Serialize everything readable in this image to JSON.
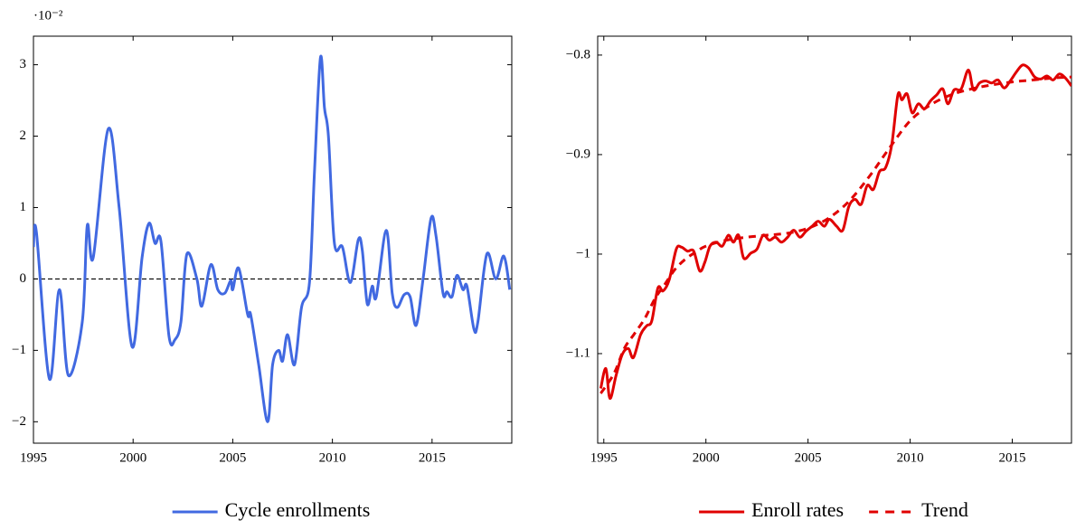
{
  "chart_data": [
    {
      "type": "line",
      "y_multiplier": "·10⁻²",
      "xlim": [
        1995,
        2019
      ],
      "ylim": [
        -2.3,
        3.4
      ],
      "xticks": [
        1995,
        2000,
        2005,
        2010,
        2015
      ],
      "yticks": [
        {
          "value": -2,
          "label": "−2"
        },
        {
          "value": -1,
          "label": "−1"
        },
        0,
        1,
        2,
        3
      ],
      "hline": 0,
      "series": [
        {
          "name": "Cycle enrollments",
          "color": "#4169e1",
          "dashed": false,
          "x": [
            1995.0,
            1995.15,
            1995.8,
            1996.3,
            1996.75,
            1997.45,
            1997.7,
            1998.0,
            1998.75,
            1999.3,
            1999.95,
            2000.45,
            2000.8,
            2001.1,
            2001.4,
            2001.8,
            2002.1,
            2002.4,
            2002.7,
            2003.2,
            2003.45,
            2003.9,
            2004.25,
            2004.6,
            2004.9,
            2005.0,
            2005.3,
            2005.75,
            2005.9,
            2006.3,
            2006.75,
            2007.0,
            2007.3,
            2007.5,
            2007.75,
            2008.1,
            2008.45,
            2008.85,
            2009.1,
            2009.4,
            2009.6,
            2009.8,
            2010.1,
            2010.5,
            2010.9,
            2011.3,
            2011.5,
            2011.75,
            2012.0,
            2012.2,
            2012.7,
            2013.0,
            2013.25,
            2013.6,
            2013.9,
            2014.2,
            2014.55,
            2014.95,
            2015.2,
            2015.55,
            2015.75,
            2016.0,
            2016.25,
            2016.55,
            2016.75,
            2017.1,
            2017.3,
            2017.75,
            2018.2,
            2018.6,
            2018.9
          ],
          "values": [
            0.45,
            0.65,
            -1.4,
            -0.15,
            -1.35,
            -0.6,
            0.75,
            0.3,
            2.1,
            1.0,
            -0.95,
            0.3,
            0.78,
            0.5,
            0.52,
            -0.8,
            -0.85,
            -0.6,
            0.35,
            0.0,
            -0.38,
            0.2,
            -0.15,
            -0.2,
            -0.02,
            -0.15,
            0.15,
            -0.5,
            -0.5,
            -1.2,
            -2.0,
            -1.2,
            -1.0,
            -1.15,
            -0.78,
            -1.2,
            -0.4,
            -0.05,
            1.5,
            3.1,
            2.4,
            2.0,
            0.5,
            0.45,
            -0.05,
            0.55,
            0.4,
            -0.35,
            -0.1,
            -0.25,
            0.68,
            -0.2,
            -0.4,
            -0.22,
            -0.25,
            -0.65,
            0.0,
            0.85,
            0.6,
            -0.2,
            -0.18,
            -0.25,
            0.05,
            -0.15,
            -0.1,
            -0.7,
            -0.6,
            0.35,
            0.0,
            0.32,
            -0.15
          ]
        }
      ]
    },
    {
      "type": "line",
      "xlim": [
        1994.7,
        2017.9
      ],
      "ylim": [
        -1.19,
        -0.781
      ],
      "xticks": [
        1995,
        2000,
        2005,
        2010,
        2015
      ],
      "yticks": [
        {
          "value": -1.1,
          "label": "−1.1"
        },
        {
          "value": -1,
          "label": "−1"
        },
        {
          "value": -0.9,
          "label": "−0.9"
        },
        {
          "value": -0.8,
          "label": "−0.8"
        }
      ],
      "series": [
        {
          "name": "Enroll rates",
          "color": "#e00000",
          "dashed": false,
          "x": [
            1994.85,
            1995.1,
            1995.3,
            1995.6,
            1995.9,
            1996.2,
            1996.45,
            1996.8,
            1997.1,
            1997.35,
            1997.65,
            1997.9,
            1998.2,
            1998.55,
            1998.8,
            1999.1,
            1999.4,
            1999.7,
            1999.95,
            2000.2,
            2000.5,
            2000.8,
            2001.1,
            2001.35,
            2001.6,
            2001.85,
            2002.2,
            2002.5,
            2002.8,
            2003.1,
            2003.4,
            2003.7,
            2004.0,
            2004.3,
            2004.6,
            2004.9,
            2005.2,
            2005.5,
            2005.8,
            2006.05,
            2006.4,
            2006.7,
            2007.0,
            2007.3,
            2007.6,
            2007.9,
            2008.2,
            2008.5,
            2008.8,
            2009.1,
            2009.4,
            2009.6,
            2009.85,
            2010.1,
            2010.4,
            2010.7,
            2011.0,
            2011.3,
            2011.6,
            2011.85,
            2012.15,
            2012.5,
            2012.85,
            2013.1,
            2013.4,
            2013.7,
            2014.0,
            2014.3,
            2014.6,
            2014.9,
            2015.2,
            2015.5,
            2015.8,
            2016.1,
            2016.4,
            2016.7,
            2017.0,
            2017.3,
            2017.6,
            2017.9
          ],
          "values": [
            -1.135,
            -1.115,
            -1.145,
            -1.122,
            -1.101,
            -1.095,
            -1.104,
            -1.081,
            -1.072,
            -1.067,
            -1.034,
            -1.037,
            -1.026,
            -0.995,
            -0.993,
            -0.997,
            -0.997,
            -1.017,
            -1.008,
            -0.992,
            -0.988,
            -0.992,
            -0.981,
            -0.988,
            -0.981,
            -1.004,
            -0.999,
            -0.995,
            -0.981,
            -0.986,
            -0.983,
            -0.988,
            -0.983,
            -0.976,
            -0.983,
            -0.977,
            -0.972,
            -0.967,
            -0.972,
            -0.965,
            -0.972,
            -0.976,
            -0.952,
            -0.945,
            -0.95,
            -0.931,
            -0.935,
            -0.917,
            -0.913,
            -0.89,
            -0.84,
            -0.845,
            -0.839,
            -0.858,
            -0.849,
            -0.854,
            -0.846,
            -0.84,
            -0.834,
            -0.849,
            -0.835,
            -0.834,
            -0.815,
            -0.835,
            -0.828,
            -0.826,
            -0.828,
            -0.825,
            -0.833,
            -0.826,
            -0.817,
            -0.81,
            -0.813,
            -0.822,
            -0.824,
            -0.821,
            -0.825,
            -0.819,
            -0.823,
            -0.831
          ]
        },
        {
          "name": "Trend",
          "color": "#e00000",
          "dashed": true,
          "x": [
            1994.85,
            1995.5,
            1996,
            1996.5,
            1997,
            1997.5,
            1998,
            1998.5,
            1999,
            1999.5,
            2000,
            2001,
            2002,
            2003,
            2004,
            2005,
            2006,
            2007,
            2008,
            2009,
            2010,
            2011,
            2012,
            2013,
            2014,
            2015,
            2016,
            2017,
            2017.9
          ],
          "values": [
            -1.14,
            -1.12,
            -1.095,
            -1.08,
            -1.065,
            -1.045,
            -1.03,
            -1.015,
            -1.005,
            -0.998,
            -0.992,
            -0.986,
            -0.983,
            -0.981,
            -0.979,
            -0.974,
            -0.964,
            -0.947,
            -0.922,
            -0.893,
            -0.866,
            -0.85,
            -0.84,
            -0.834,
            -0.83,
            -0.827,
            -0.825,
            -0.823,
            -0.822
          ]
        }
      ]
    }
  ]
}
